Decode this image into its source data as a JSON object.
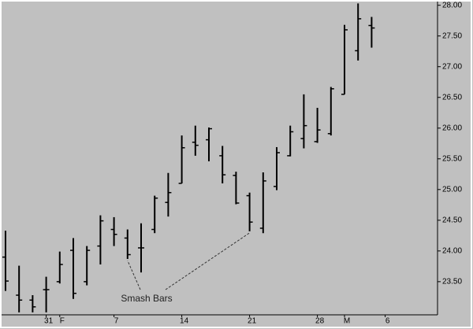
{
  "chart_data": {
    "type": "ohlc",
    "x": [
      0,
      1,
      2,
      3,
      4,
      5,
      6,
      7,
      8,
      9,
      10,
      11,
      12,
      13,
      14,
      15,
      16,
      17,
      18,
      19,
      20,
      21,
      22,
      23,
      24,
      25,
      26,
      27
    ],
    "open": [
      23.9,
      23.28,
      23.2,
      23.37,
      23.5,
      24.01,
      23.5,
      24.08,
      24.35,
      24.21,
      24.05,
      24.35,
      24.79,
      25.1,
      25.77,
      25.81,
      25.55,
      25.23,
      24.9,
      24.37,
      25.05,
      25.55,
      25.83,
      25.78,
      25.91,
      26.55,
      27.26,
      27.67
    ],
    "high": [
      24.33,
      23.76,
      23.28,
      23.58,
      23.99,
      24.21,
      24.08,
      24.58,
      24.55,
      24.35,
      24.45,
      24.9,
      25.27,
      25.88,
      26.04,
      26.01,
      25.71,
      25.29,
      24.95,
      25.28,
      25.69,
      26.04,
      26.55,
      26.33,
      26.67,
      27.68,
      28.03,
      27.81
    ],
    "low": [
      23.35,
      23.0,
      23.0,
      23.0,
      23.47,
      23.22,
      23.44,
      23.78,
      24.08,
      23.87,
      23.65,
      24.29,
      24.56,
      25.1,
      25.55,
      25.46,
      25.1,
      24.76,
      24.32,
      24.29,
      24.99,
      25.54,
      25.67,
      25.76,
      25.88,
      26.55,
      27.1,
      27.31
    ],
    "close": [
      23.51,
      23.2,
      23.09,
      23.37,
      23.78,
      23.31,
      24.01,
      24.49,
      24.27,
      23.94,
      24.05,
      24.86,
      24.95,
      25.68,
      25.72,
      25.99,
      25.24,
      24.78,
      24.47,
      25.14,
      25.6,
      25.94,
      26.04,
      25.97,
      26.64,
      27.6,
      27.78,
      27.63
    ],
    "color": "#000000",
    "xlim": [
      -0.29,
      31.86
    ],
    "xticks": [
      {
        "value": 3,
        "label": "31"
      },
      {
        "value": 4,
        "label": "F"
      },
      {
        "value": 8,
        "label": "7"
      },
      {
        "value": 13,
        "label": "14"
      },
      {
        "value": 18,
        "label": "21"
      },
      {
        "value": 23,
        "label": "28"
      },
      {
        "value": 25,
        "label": "M"
      },
      {
        "value": 28,
        "label": "6"
      }
    ],
    "ylim": [
      22.96,
      28.06
    ],
    "yticks": [
      {
        "value": 23.5,
        "label": "23.50"
      },
      {
        "value": 24,
        "label": "24.00"
      },
      {
        "value": 24.5,
        "label": "24.50"
      },
      {
        "value": 25,
        "label": "25.00"
      },
      {
        "value": 25.5,
        "label": "25.50"
      },
      {
        "value": 26,
        "label": "26.00"
      },
      {
        "value": 26.5,
        "label": "26.50"
      },
      {
        "value": 27,
        "label": "27.00"
      },
      {
        "value": 27.5,
        "label": "27.50"
      },
      {
        "value": 28,
        "label": "28.00"
      }
    ],
    "annotation": {
      "text": "Smash Bars",
      "points": [
        9,
        18
      ]
    }
  }
}
